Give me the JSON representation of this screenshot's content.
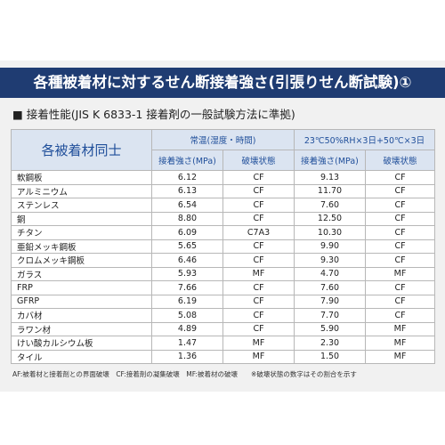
{
  "header": {
    "title": "各種被着材に対するせん断接着強さ(引張りせん断試験)①"
  },
  "subtitle": "■ 接着性能(JIS K 6833-1 接着剤の一般試験方法に準拠)",
  "table": {
    "corner": "各被着材同士",
    "groups": [
      "常温(湿度・時間)",
      "23℃50%RH×3日+50℃×3日"
    ],
    "columns": [
      "接着強さ(MPa)",
      "破壊状態",
      "接着強さ(MPa)",
      "破壊状態"
    ],
    "rows": [
      [
        "軟鋼板",
        "6.12",
        "CF",
        "9.13",
        "CF"
      ],
      [
        "アルミニウム",
        "6.13",
        "CF",
        "11.70",
        "CF"
      ],
      [
        "ステンレス",
        "6.54",
        "CF",
        "7.60",
        "CF"
      ],
      [
        "銅",
        "8.80",
        "CF",
        "12.50",
        "CF"
      ],
      [
        "チタン",
        "6.09",
        "C7A3",
        "10.30",
        "CF"
      ],
      [
        "亜鉛メッキ鋼板",
        "5.65",
        "CF",
        "9.90",
        "CF"
      ],
      [
        "クロムメッキ鋼板",
        "6.46",
        "CF",
        "9.30",
        "CF"
      ],
      [
        "ガラス",
        "5.93",
        "MF",
        "4.70",
        "MF"
      ],
      [
        "FRP",
        "7.66",
        "CF",
        "7.60",
        "CF"
      ],
      [
        "GFRP",
        "6.19",
        "CF",
        "7.90",
        "CF"
      ],
      [
        "カバ材",
        "5.08",
        "CF",
        "7.70",
        "CF"
      ],
      [
        "ラワン材",
        "4.89",
        "CF",
        "5.90",
        "MF"
      ],
      [
        "けい酸カルシウム板",
        "1.47",
        "MF",
        "2.30",
        "MF"
      ],
      [
        "タイル",
        "1.36",
        "MF",
        "1.50",
        "MF"
      ]
    ]
  },
  "footnote": "AF:被着材と接着剤との界面破壊　CF:接着剤の凝集破壊　MF:被着材の破壊　　※破壊状態の数字はその割合を示す"
}
